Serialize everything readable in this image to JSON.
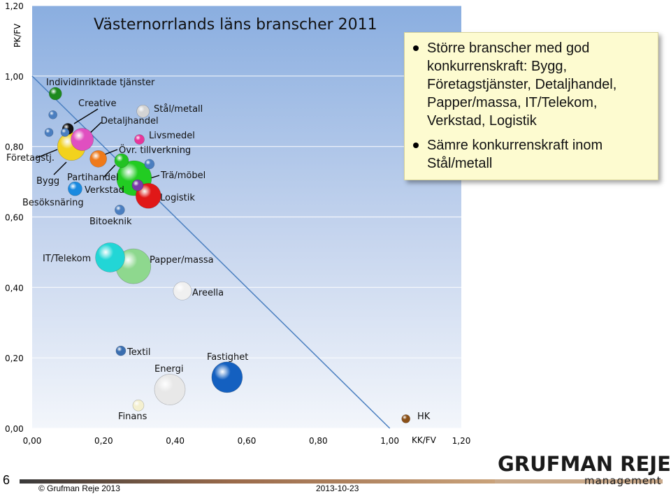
{
  "colors": {
    "plot_bg_top": "#8aaee0",
    "plot_bg_bottom": "#f3f6fb",
    "gridline": "#ffffff",
    "diagonal": "#4a7fc0",
    "callout_bg": "#fdfbd0"
  },
  "chart_data": {
    "type": "bubble",
    "title": "Västernorrlands läns branscher 2011",
    "xlabel": "KK/FV",
    "ylabel": "PK/FV",
    "xlim": [
      0,
      1.2
    ],
    "ylim": [
      0,
      1.2
    ],
    "x_ticks": [
      "0,00",
      "0,20",
      "0,40",
      "0,60",
      "0,80",
      "1,00",
      "1,20"
    ],
    "y_ticks": [
      "0,00",
      "0,20",
      "0,40",
      "0,60",
      "0,80",
      "1,00",
      "1,20"
    ],
    "grid": true,
    "reference_line": {
      "from": [
        0.0,
        1.0
      ],
      "to": [
        1.0,
        0.0
      ]
    },
    "points": [
      {
        "name": "Individinriktade tjänster",
        "x": 0.065,
        "y": 0.95,
        "size": 9,
        "color": "#1e8a1e"
      },
      {
        "name": "",
        "x": 0.058,
        "y": 0.89,
        "size": 6,
        "color": "#4a7ec0"
      },
      {
        "name": "",
        "x": 0.047,
        "y": 0.84,
        "size": 6,
        "color": "#4a7ec0"
      },
      {
        "name": "",
        "x": 0.1,
        "y": 0.85,
        "size": 8,
        "color": "#111111"
      },
      {
        "name": "",
        "x": 0.092,
        "y": 0.84,
        "size": 6,
        "color": "#4a7ec0"
      },
      {
        "name": "Företagstj.",
        "x": 0.11,
        "y": 0.8,
        "size": 20,
        "color": "#f2d21e"
      },
      {
        "name": "Detaljhandel",
        "x": 0.14,
        "y": 0.82,
        "size": 16,
        "color": "#e04fc0"
      },
      {
        "name": "Stål/metall",
        "x": 0.31,
        "y": 0.9,
        "size": 9,
        "color": "#d4d4d4"
      },
      {
        "name": "Livsmedel",
        "x": 0.3,
        "y": 0.82,
        "size": 7,
        "color": "#e8359a"
      },
      {
        "name": "Övr. tillverkning",
        "x": 0.185,
        "y": 0.765,
        "size": 12,
        "color": "#ef7a1a"
      },
      {
        "name": "Partihandel",
        "x": 0.25,
        "y": 0.76,
        "size": 10,
        "color": "#22c222"
      },
      {
        "name": "",
        "x": 0.328,
        "y": 0.75,
        "size": 7,
        "color": "#4a7ec0"
      },
      {
        "name": "Trä/möbel",
        "x": 0.285,
        "y": 0.71,
        "size": 25,
        "color": "#22cc22"
      },
      {
        "name": "Verkstad",
        "x": 0.295,
        "y": 0.69,
        "size": 8,
        "color": "#7a3aa8"
      },
      {
        "name": "Logistik",
        "x": 0.325,
        "y": 0.66,
        "size": 18,
        "color": "#e01818"
      },
      {
        "name": "Besöksnäring",
        "x": 0.12,
        "y": 0.68,
        "size": 10,
        "color": "#1a8ae0"
      },
      {
        "name": "Bitoeknik",
        "x": 0.245,
        "y": 0.62,
        "size": 7,
        "color": "#4a7ec0"
      },
      {
        "name": "IT/Telekom",
        "x": 0.218,
        "y": 0.485,
        "size": 21,
        "color": "#22d6d6"
      },
      {
        "name": "Papper/massa",
        "x": 0.283,
        "y": 0.46,
        "size": 25,
        "color": "#8ed88e"
      },
      {
        "name": "Areella",
        "x": 0.42,
        "y": 0.39,
        "size": 13,
        "color": "#f0f0f0"
      },
      {
        "name": "Textil",
        "x": 0.248,
        "y": 0.22,
        "size": 7,
        "color": "#3a6eb0"
      },
      {
        "name": "Energi",
        "x": 0.385,
        "y": 0.11,
        "size": 22,
        "color": "#e8e8e8"
      },
      {
        "name": "Fastighet",
        "x": 0.545,
        "y": 0.145,
        "size": 22,
        "color": "#1460c0"
      },
      {
        "name": "Finans",
        "x": 0.297,
        "y": 0.065,
        "size": 8,
        "color": "#f4f0d0"
      },
      {
        "name": "HK",
        "x": 1.045,
        "y": 0.027,
        "size": 6,
        "color": "#8a5018"
      }
    ],
    "labels": [
      "Individinriktade tjänster",
      "Creative",
      "Stål/metall",
      "Detaljhandel",
      "Livsmedel",
      "Företagstj.",
      "Övr. tillverkning",
      "Bygg",
      "Partihandel",
      "Trä/möbel",
      "Verkstad",
      "Logistik",
      "Besöksnäring",
      "Bitoeknik",
      "IT/Telekom",
      "Papper/massa",
      "Areella",
      "Textil",
      "Fastighet",
      "Energi",
      "Finans",
      "HK"
    ]
  },
  "callout": {
    "items": [
      "Större branscher med god konkurrenskraft: Bygg, Företagstjänster, Detaljhandel, Papper/massa, IT/Telekom, Verkstad, Logistik",
      "Sämre konkurrenskraft inom Stål/metall"
    ]
  },
  "footer": {
    "slide_number": "6",
    "copyright": "© Grufman Reje 2013",
    "date": "2013-10-23",
    "logo_top": "GRUFMAN REJE",
    "logo_bottom": "management"
  }
}
